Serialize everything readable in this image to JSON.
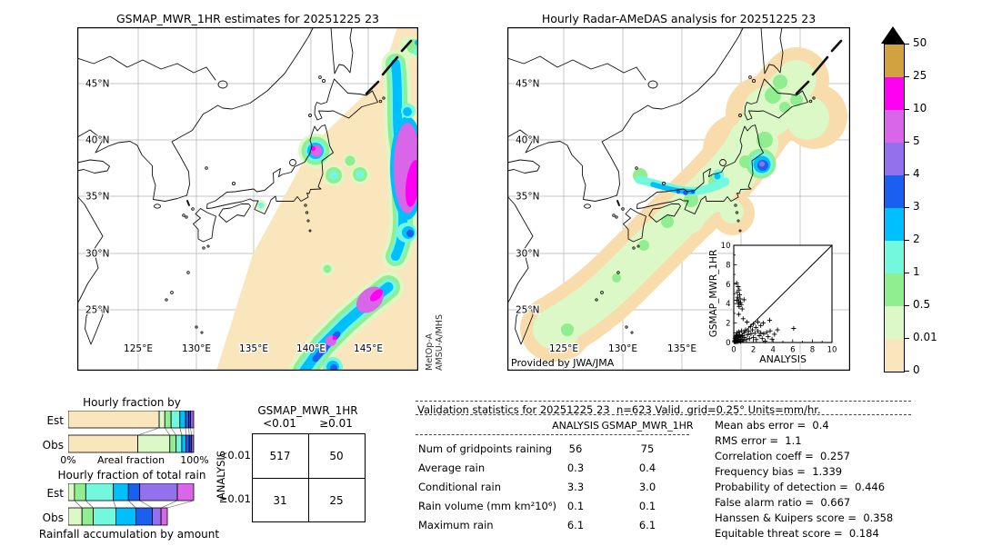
{
  "maps": {
    "left": {
      "title": "GSMAP_MWR_1HR estimates for 20251225 23",
      "lat_labels": [
        "45°N",
        "40°N",
        "35°N",
        "30°N",
        "25°N"
      ],
      "lon_labels": [
        "125°E",
        "130°E",
        "135°E",
        "140°E",
        "145°E"
      ],
      "sensor_line1": "MetOp-A",
      "sensor_line2": "AMSU-A/MHS"
    },
    "right": {
      "title": "Hourly Radar-AMeDAS analysis for 20251225 23",
      "lat_labels": [
        "45°N",
        "40°N",
        "35°N",
        "30°N",
        "25°N"
      ],
      "lon_labels": [
        "125°E",
        "130°E",
        "135°E"
      ],
      "credit": "Provided by JWA/JMA"
    }
  },
  "colorbar": {
    "tick_labels": [
      "50",
      "25",
      "10",
      "5",
      "4",
      "3",
      "2",
      "1",
      "0.5",
      "0.01",
      "0"
    ],
    "colors": [
      "#D2A140",
      "#FF00F2",
      "#D965E8",
      "#9370EC",
      "#1A5FF0",
      "#00BFFF",
      "#72F8DC",
      "#90EE90",
      "#DCF8C6",
      "#FAE6BD"
    ],
    "units": "mm/hr"
  },
  "chart_data": [
    {
      "type": "bar",
      "title": "Hourly fraction by occurence",
      "orientation": "horizontal-stacked",
      "xlabel": "Areal fraction",
      "x_ticks": [
        "0%",
        "100%"
      ],
      "xlim": [
        0,
        100
      ],
      "segment_colors": [
        "#FAE6BD",
        "#DCF8C6",
        "#90EE90",
        "#72F8DC",
        "#00BFFF",
        "#1A5FF0",
        "#3A3AD9",
        "#9D5BE5"
      ],
      "rows": [
        {
          "label": "Est",
          "values": [
            72.5,
            4.5,
            5,
            7,
            4.5,
            2.5,
            1.5,
            2.5
          ]
        },
        {
          "label": "Obs",
          "values": [
            55.5,
            25.5,
            5,
            4.5,
            3.3,
            2.7,
            1.8,
            1.7
          ]
        }
      ]
    },
    {
      "type": "bar",
      "title": "Hourly fraction of total rain",
      "caption": "Rainfall accumulation by amount",
      "orientation": "horizontal-stacked",
      "xlim": [
        0,
        100
      ],
      "segment_colors": [
        "#DCF8C6",
        "#90EE90",
        "#72F8DC",
        "#00BFFF",
        "#1A5FF0",
        "#9370EC",
        "#D965E8"
      ],
      "rows": [
        {
          "label": "Est",
          "values": [
            5,
            9,
            22,
            12,
            9,
            30,
            13
          ]
        },
        {
          "label": "Obs",
          "values": [
            11,
            9,
            18,
            16,
            13,
            7,
            5
          ]
        }
      ]
    },
    {
      "type": "scatter",
      "xlabel": "ANALYSIS",
      "ylabel": "GSMAP_MWR_1HR",
      "xlim": [
        0,
        10
      ],
      "ylim": [
        0,
        10
      ],
      "ticks": [
        0,
        2,
        4,
        6,
        8,
        10
      ],
      "diagonal": true,
      "marker": "+",
      "points": [
        [
          0.05,
          0.08
        ],
        [
          0.1,
          0.2
        ],
        [
          0.12,
          0.45
        ],
        [
          0.15,
          0.1
        ],
        [
          0.18,
          0.6
        ],
        [
          0.2,
          0.3
        ],
        [
          0.22,
          0.05
        ],
        [
          0.25,
          0.75
        ],
        [
          0.3,
          0.15
        ],
        [
          0.3,
          0.5
        ],
        [
          0.32,
          1.0
        ],
        [
          0.35,
          0.3
        ],
        [
          0.4,
          0.08
        ],
        [
          0.4,
          0.65
        ],
        [
          0.45,
          0.25
        ],
        [
          0.5,
          0.5
        ],
        [
          0.5,
          1.1
        ],
        [
          0.55,
          0.15
        ],
        [
          0.6,
          0.8
        ],
        [
          0.65,
          0.35
        ],
        [
          0.7,
          0.1
        ],
        [
          0.75,
          0.6
        ],
        [
          0.8,
          1.2
        ],
        [
          0.85,
          0.3
        ],
        [
          0.9,
          0.7
        ],
        [
          1.0,
          0.2
        ],
        [
          1.05,
          1.0
        ],
        [
          1.1,
          0.5
        ],
        [
          1.2,
          1.3
        ],
        [
          1.3,
          0.3
        ],
        [
          1.4,
          0.8
        ],
        [
          1.5,
          1.15
        ],
        [
          1.6,
          0.4
        ],
        [
          1.75,
          0.9
        ],
        [
          1.9,
          1.3
        ],
        [
          2.0,
          0.5
        ],
        [
          2.15,
          0.95
        ],
        [
          2.3,
          0.3
        ],
        [
          2.45,
          1.2
        ],
        [
          2.6,
          0.7
        ],
        [
          2.75,
          1.0
        ],
        [
          2.9,
          0.4
        ],
        [
          3.05,
          0.9
        ],
        [
          3.2,
          0.15
        ],
        [
          3.35,
          1.05
        ],
        [
          3.5,
          0.6
        ],
        [
          3.7,
          1.2
        ],
        [
          3.9,
          0.35
        ],
        [
          4.15,
          0.85
        ],
        [
          4.45,
          1.3
        ],
        [
          6.1,
          1.45
        ],
        [
          0.3,
          6.1
        ],
        [
          0.45,
          5.75
        ],
        [
          0.55,
          5.4
        ],
        [
          0.35,
          5.15
        ],
        [
          0.6,
          4.9
        ],
        [
          0.4,
          4.65
        ],
        [
          0.65,
          4.5
        ],
        [
          0.3,
          4.35
        ],
        [
          0.5,
          4.2
        ],
        [
          0.7,
          4.1
        ],
        [
          0.45,
          4.0
        ],
        [
          0.75,
          3.9
        ],
        [
          0.55,
          3.7
        ],
        [
          0.85,
          3.45
        ],
        [
          1.05,
          4.4
        ],
        [
          0.5,
          2.9
        ],
        [
          0.95,
          2.45
        ],
        [
          1.35,
          2.1
        ],
        [
          2.0,
          1.9
        ],
        [
          2.45,
          2.1
        ],
        [
          3.0,
          2.0
        ],
        [
          3.65,
          2.3
        ],
        [
          1.7,
          1.65
        ],
        [
          2.25,
          1.55
        ],
        [
          2.75,
          1.75
        ]
      ]
    }
  ],
  "contingency": {
    "col_axis": "GSMAP_MWR_1HR",
    "row_axis": "ANALYSIS",
    "col_labels": [
      "<0.01",
      "≥0.01"
    ],
    "row_labels": [
      "<0.01",
      "≥0.01"
    ],
    "values": [
      [
        "517",
        "50"
      ],
      [
        "31",
        "25"
      ]
    ]
  },
  "validation": {
    "title": "Validation statistics for 20251225 23  n=623 Valid. grid=0.25° Units=mm/hr.",
    "columns": [
      "ANALYSIS",
      "GSMAP_MWR_1HR"
    ],
    "rows": [
      [
        "Num of gridpoints raining",
        "56",
        "75"
      ],
      [
        "Average rain",
        "0.3",
        "0.4"
      ],
      [
        "Conditional rain",
        "3.3",
        "3.0"
      ],
      [
        "Rain volume (mm km²10⁶)",
        "0.1",
        "0.1"
      ],
      [
        "Maximum rain",
        "6.1",
        "6.1"
      ]
    ]
  },
  "metrics": [
    {
      "label": "Mean abs error",
      "value": "0.4"
    },
    {
      "label": "RMS error",
      "value": "1.1"
    },
    {
      "label": "Correlation coeff",
      "value": "0.257"
    },
    {
      "label": "Frequency bias",
      "value": "1.339"
    },
    {
      "label": "Probability of detection",
      "value": "0.446"
    },
    {
      "label": "False alarm ratio",
      "value": "0.667"
    },
    {
      "label": "Hanssen & Kuipers score",
      "value": "0.358"
    },
    {
      "label": "Equitable threat score",
      "value": "0.184"
    }
  ]
}
